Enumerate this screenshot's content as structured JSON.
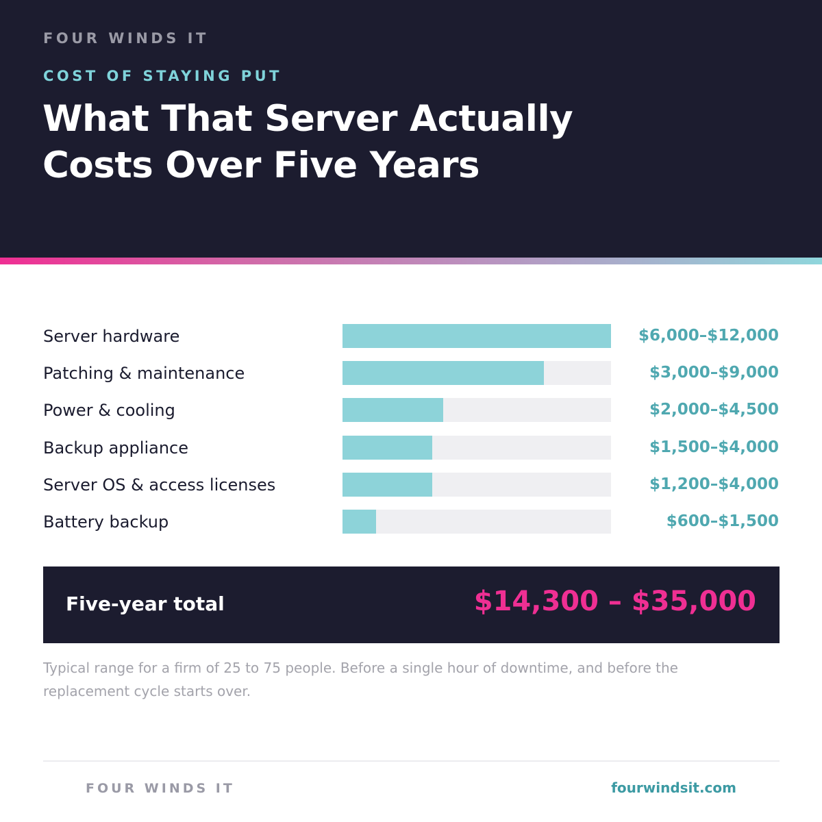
{
  "header": {
    "brand": "FOUR WINDS IT",
    "eyebrow": "COST OF STAYING PUT",
    "title": "What That Server Actually Costs Over Five Years"
  },
  "colors": {
    "header_bg": "#1c1c2f",
    "bar_fill": "#8dd3d9",
    "bar_track": "#efeff2",
    "value_text": "#4fa8b0",
    "accent_pink": "#ef2f93",
    "gradient": [
      "#ef2f93",
      "#8fd6dc"
    ]
  },
  "chart_data": {
    "type": "bar",
    "orientation": "horizontal",
    "categories": [
      "Server hardware",
      "Patching & maintenance",
      "Power & cooling",
      "Backup appliance",
      "Server OS & access licenses",
      "Battery backup"
    ],
    "value_labels": [
      "$6,000–$12,000",
      "$3,000–$9,000",
      "$2,000–$4,500",
      "$1,500–$4,000",
      "$1,200–$4,000",
      "$600–$1,500"
    ],
    "values": [
      12000,
      9000,
      4500,
      4000,
      4000,
      1500
    ],
    "xlim": [
      0,
      12000
    ]
  },
  "total": {
    "label": "Five-year total",
    "value": "$14,300 – $35,000"
  },
  "footnote": "Typical range for a firm of 25 to 75 people. Before a single hour of downtime, and before the replacement cycle starts over.",
  "footer": {
    "brand": "FOUR WINDS IT",
    "site": "fourwindsit.com"
  }
}
